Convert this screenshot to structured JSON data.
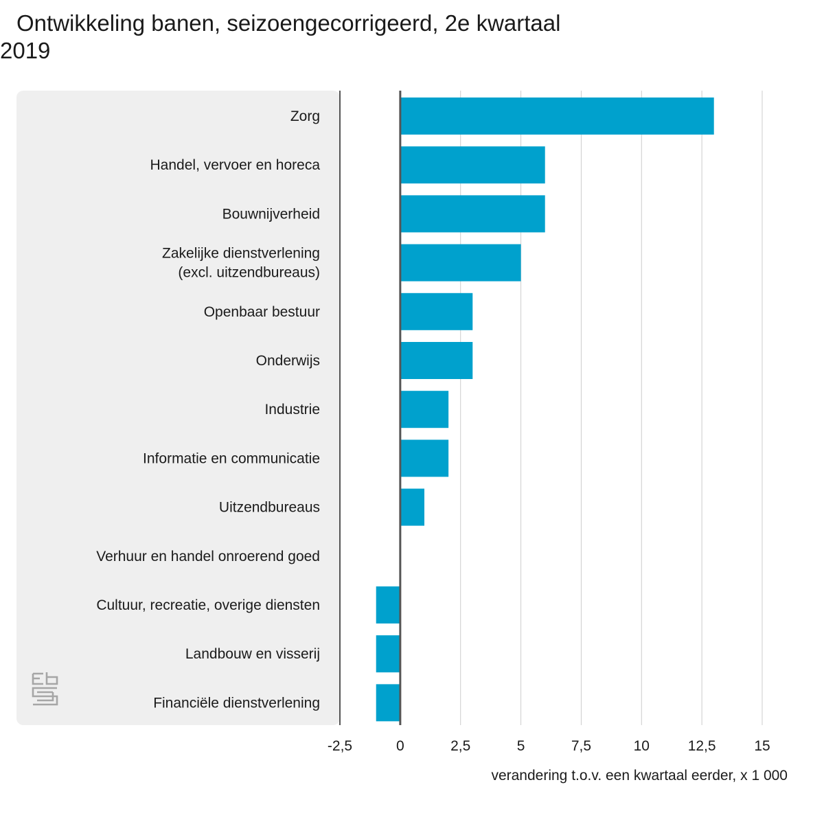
{
  "title_line1": "Ontwikkeling banen, seizoengecorrigeerd, 2e kwartaal",
  "title_line2": "2019",
  "colors": {
    "bar": "#00a1cd",
    "panel": "#efefef",
    "grid": "#cccccc",
    "axis": "#555555",
    "logo": "#a6a6a6"
  },
  "logo_icon": "cbs-logo-icon",
  "chart_data": {
    "type": "bar",
    "orientation": "horizontal",
    "categories": [
      "Zorg",
      "Handel, vervoer en horeca",
      "Bouwnijverheid",
      "Zakelijke dienstverlening (excl. uitzendbureaus)",
      "Openbaar bestuur",
      "Onderwijs",
      "Industrie",
      "Informatie en communicatie",
      "Uitzendbureaus",
      "Verhuur en handel onroerend goed",
      "Cultuur, recreatie, overige diensten",
      "Landbouw en visserij",
      "Financiële dienstverlening"
    ],
    "category_lines": [
      [
        "Zorg"
      ],
      [
        "Handel, vervoer en horeca"
      ],
      [
        "Bouwnijverheid"
      ],
      [
        "Zakelijke dienstverlening",
        "(excl. uitzendbureaus)"
      ],
      [
        "Openbaar bestuur"
      ],
      [
        "Onderwijs"
      ],
      [
        "Industrie"
      ],
      [
        "Informatie en communicatie"
      ],
      [
        "Uitzendbureaus"
      ],
      [
        "Verhuur en handel onroerend goed"
      ],
      [
        "Cultuur, recreatie, overige diensten"
      ],
      [
        "Landbouw en visserij"
      ],
      [
        "Financiële dienstverlening"
      ]
    ],
    "values": [
      13,
      6,
      6,
      5,
      3,
      3,
      2,
      2,
      1,
      0,
      -1,
      -1,
      -1
    ],
    "xlim": [
      -2.5,
      15
    ],
    "xticks": [
      -2.5,
      0,
      2.5,
      5,
      7.5,
      10,
      12.5,
      15
    ],
    "xtick_labels": [
      "-2,5",
      "0",
      "2,5",
      "5",
      "7,5",
      "10",
      "12,5",
      "15"
    ],
    "xlabel": "verandering t.o.v. een kwartaal eerder, x 1 000",
    "ylabel": "",
    "grid": true
  }
}
